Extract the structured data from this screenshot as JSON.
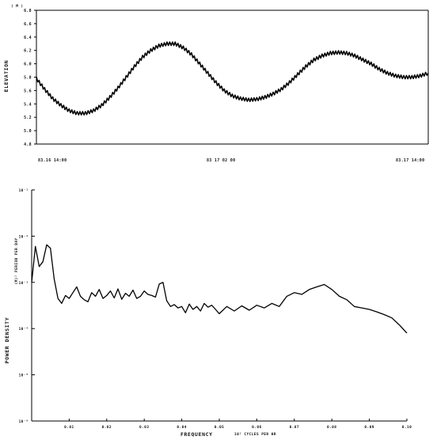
{
  "chart_data": [
    {
      "type": "line",
      "title": "",
      "ylabel": "ELEVATION",
      "yunit": "( M )",
      "ylim": [
        4.8,
        6.8
      ],
      "yticks": [
        "6.8",
        "6.6",
        "6.4",
        "6.2",
        "6.0",
        "5.8",
        "5.6",
        "5.4",
        "5.2",
        "5.0",
        "4.8"
      ],
      "xticklabels": [
        "83.16 14:00",
        "83 17 02 00",
        "83.17 14:00"
      ],
      "xlim": [
        0,
        24
      ],
      "grid": false,
      "series": [
        {
          "x": [
            0,
            0.5,
            1,
            1.5,
            2,
            2.5,
            3,
            3.5,
            4,
            4.5,
            5,
            5.5,
            6,
            6.5,
            7,
            7.5,
            8,
            8.5,
            9,
            9.5,
            10,
            10.5,
            11,
            11.5,
            12,
            12.5,
            13,
            13.5,
            14,
            14.5,
            15,
            15.5,
            16,
            16.5,
            17,
            17.5,
            18,
            18.5,
            19,
            19.5,
            20,
            20.5,
            21,
            21.5,
            22,
            22.5,
            23,
            23.5,
            24
          ],
          "y": [
            5.78,
            5.62,
            5.48,
            5.38,
            5.3,
            5.26,
            5.26,
            5.3,
            5.38,
            5.5,
            5.64,
            5.8,
            5.96,
            6.1,
            6.2,
            6.27,
            6.3,
            6.3,
            6.24,
            6.14,
            6.0,
            5.86,
            5.72,
            5.6,
            5.52,
            5.48,
            5.46,
            5.47,
            5.5,
            5.55,
            5.62,
            5.72,
            5.84,
            5.96,
            6.06,
            6.12,
            6.16,
            6.17,
            6.16,
            6.12,
            6.06,
            6.0,
            5.92,
            5.86,
            5.82,
            5.8,
            5.8,
            5.82,
            5.86
          ]
        }
      ]
    },
    {
      "type": "line",
      "title": "",
      "ylabel": "POWER DENSITY",
      "ylabel2": "(M)² PERIOD PER DAY",
      "yscale": "log",
      "ylim": [
        1e-06,
        0.1
      ],
      "yticks": [
        "10⁻¹",
        "10⁻²",
        "10⁻³",
        "10⁻⁴",
        "10⁻⁵",
        "10⁻⁶"
      ],
      "xlabel": "FREQUENCY",
      "xunit": "10¹ CYCLES PER HR",
      "xlim": [
        0,
        1.0
      ],
      "xticks": [
        "0.01",
        "0.02",
        "0.03",
        "0.04",
        "0.05",
        "0.06",
        "0.07",
        "0.08",
        "0.09",
        "0.10"
      ],
      "grid": false,
      "series": [
        {
          "x": [
            0.0,
            0.01,
            0.02,
            0.03,
            0.04,
            0.05,
            0.06,
            0.07,
            0.08,
            0.09,
            0.1,
            0.11,
            0.12,
            0.13,
            0.14,
            0.15,
            0.16,
            0.17,
            0.18,
            0.19,
            0.2,
            0.21,
            0.22,
            0.23,
            0.24,
            0.25,
            0.26,
            0.27,
            0.28,
            0.29,
            0.3,
            0.31,
            0.32,
            0.33,
            0.34,
            0.35,
            0.36,
            0.37,
            0.38,
            0.39,
            0.4,
            0.41,
            0.42,
            0.43,
            0.44,
            0.45,
            0.46,
            0.47,
            0.48,
            0.49,
            0.5,
            0.52,
            0.54,
            0.56,
            0.58,
            0.6,
            0.62,
            0.64,
            0.66,
            0.68,
            0.7,
            0.72,
            0.74,
            0.76,
            0.78,
            0.8,
            0.82,
            0.84,
            0.86,
            0.88,
            0.9,
            0.92,
            0.94,
            0.96,
            0.98,
            1.0
          ],
          "y": [
            0.001,
            0.006,
            0.0022,
            0.0028,
            0.0065,
            0.0055,
            0.0012,
            0.00045,
            0.00035,
            0.00052,
            0.00045,
            0.0006,
            0.0008,
            0.0005,
            0.00042,
            0.00038,
            0.0006,
            0.0005,
            0.0007,
            0.00045,
            0.00052,
            0.00065,
            0.00046,
            0.00072,
            0.00043,
            0.00058,
            0.0005,
            0.00068,
            0.00045,
            0.0005,
            0.00065,
            0.00055,
            0.00052,
            0.00048,
            0.00092,
            0.001,
            0.0004,
            0.0003,
            0.00033,
            0.00028,
            0.0003,
            0.00022,
            0.00034,
            0.00026,
            0.0003,
            0.00024,
            0.00035,
            0.00029,
            0.00032,
            0.00026,
            0.00021,
            0.0003,
            0.00024,
            0.00031,
            0.00025,
            0.00032,
            0.00028,
            0.00035,
            0.0003,
            0.0005,
            0.0006,
            0.00055,
            0.0007,
            0.0008,
            0.0009,
            0.0007,
            0.0005,
            0.00042,
            0.0003,
            0.00028,
            0.00026,
            0.00023,
            0.0002,
            0.00017,
            0.00012,
            8e-05
          ]
        }
      ]
    }
  ]
}
